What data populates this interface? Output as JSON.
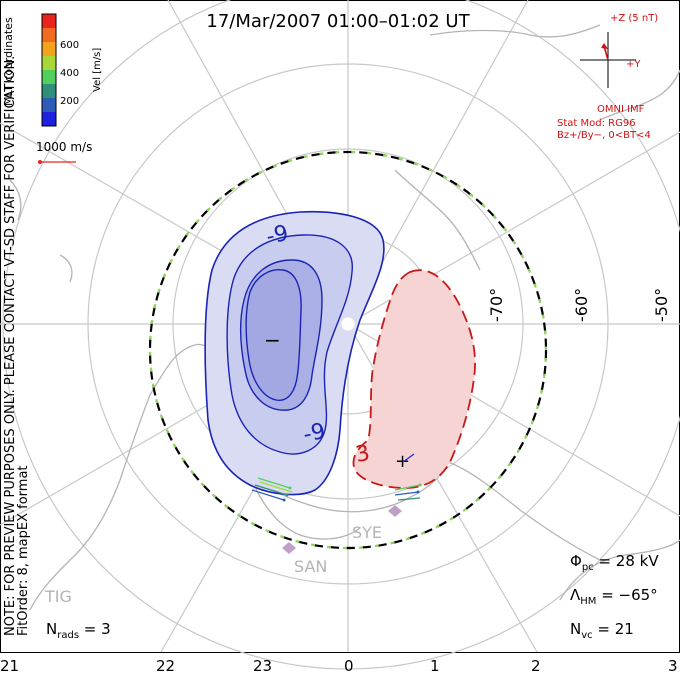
{
  "title": "17/Mar/2007 01:00–01:02 UT",
  "colorbar": {
    "label": "Vel [m/s]",
    "ticks": [
      "600",
      "400",
      "200"
    ],
    "colors": [
      "#e8241c",
      "#f06a20",
      "#f4a21c",
      "#a8d838",
      "#4fcf5e",
      "#2f8f7a",
      "#2a5cb8",
      "#1e22e0"
    ]
  },
  "side_label_coords": "MLT coordinates",
  "side_label_note": "NOTE: FOR PREVIEW PURPOSES ONLY. PLEASE CONTACT VT-SD STAFF FOR VERIFICATION.",
  "side_label_fit": "FitOrder: 8, mapEX format",
  "velocity_ref": "1000 m/s",
  "imf": {
    "z_label": "+Z (5 nT)",
    "y_label": "+Y",
    "source": "OMNI IMF",
    "model_line1": "Stat Mod: RG96",
    "model_line2": "Bz+/By−, 0<BT<4"
  },
  "latitude_labels": [
    "-70°",
    "-60°",
    "-50°"
  ],
  "contours": {
    "neg_label": "-9",
    "pos_label": "3",
    "min_marker": "−",
    "max_marker": "+"
  },
  "stations": [
    "SYE",
    "SAN",
    "TIG"
  ],
  "stats": {
    "phi_pc": "Φpc = 28 kV",
    "lambda_hm": "ΛHM = −65°",
    "n_vc": "Nvc = 21",
    "n_rads": "Nrads = 3"
  },
  "mlt_labels": [
    "21",
    "22",
    "23",
    "0",
    "1",
    "2",
    "3"
  ],
  "colors": {
    "grid": "#c8c8c8",
    "continent": "#b4b4b4",
    "neg_contour": "#1a24b4",
    "pos_contour": "#c81818",
    "neg_fill": "#d9dcf2",
    "neg_fill_inner": "#aab0e6",
    "pos_fill": "#f6d4d4",
    "imf_red": "#d01010",
    "hm_boundary": "#000000",
    "hm_dash": "#8fd65a"
  }
}
